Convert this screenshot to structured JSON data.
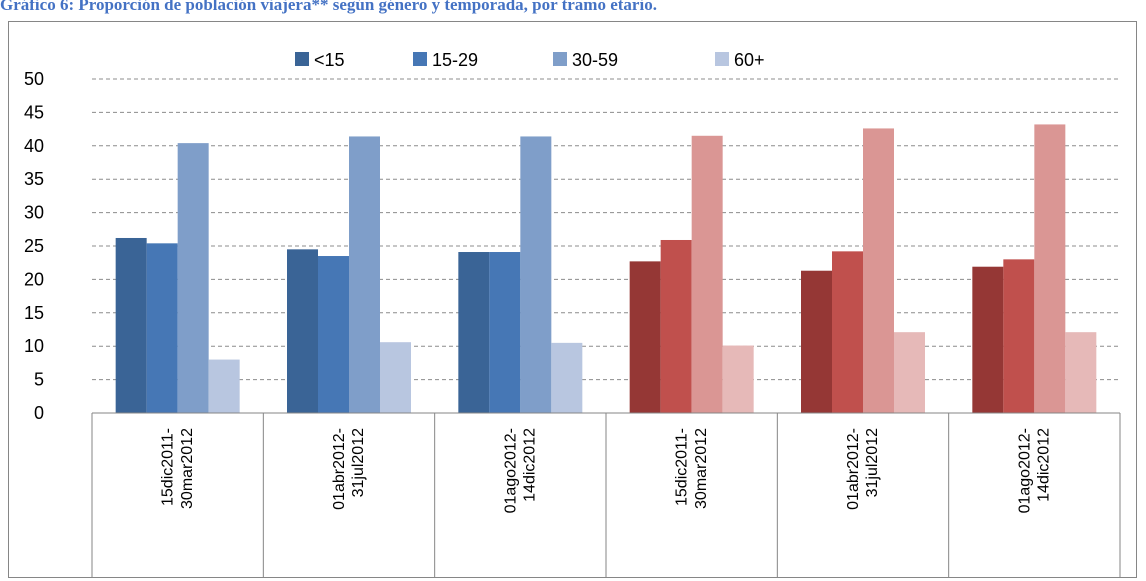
{
  "chart_data": {
    "type": "bar",
    "title": "Gráfico 6: Proporción de población viajera** según género y temporada, por tramo etario.",
    "ylim": [
      0,
      50
    ],
    "yticks": [
      0,
      5,
      10,
      15,
      20,
      25,
      30,
      35,
      40,
      45,
      50
    ],
    "grid": true,
    "legend_position": "top",
    "legend": [
      "<15",
      "15-29",
      "30-59",
      "60+"
    ],
    "categories": [
      [
        "15dic2011-",
        "30mar2012"
      ],
      [
        "01abr2012-",
        "31jul2012"
      ],
      [
        "01ago2012-",
        "14dic2012"
      ],
      [
        "15dic2011-",
        "30mar2012"
      ],
      [
        "01abr2012-",
        "31jul2012"
      ],
      [
        "01ago2012-",
        "14dic2012"
      ]
    ],
    "series": [
      {
        "name": "<15",
        "values": [
          26.2,
          24.5,
          24.1,
          22.7,
          21.3,
          21.9
        ]
      },
      {
        "name": "15-29",
        "values": [
          25.4,
          23.5,
          24.1,
          25.9,
          24.2,
          23.0
        ]
      },
      {
        "name": "30-59",
        "values": [
          40.4,
          41.4,
          41.4,
          41.5,
          42.6,
          43.2
        ]
      },
      {
        "name": "60+",
        "values": [
          8.0,
          10.6,
          10.5,
          10.1,
          12.1,
          12.1
        ]
      }
    ],
    "palettes": {
      "blue": [
        "#3a6496",
        "#4677b5",
        "#7f9ec9",
        "#b8c6e0"
      ],
      "red": [
        "#953735",
        "#c0504d",
        "#da9694",
        "#e6b9b8"
      ]
    },
    "category_palette": [
      "blue",
      "blue",
      "blue",
      "red",
      "red",
      "red"
    ]
  }
}
